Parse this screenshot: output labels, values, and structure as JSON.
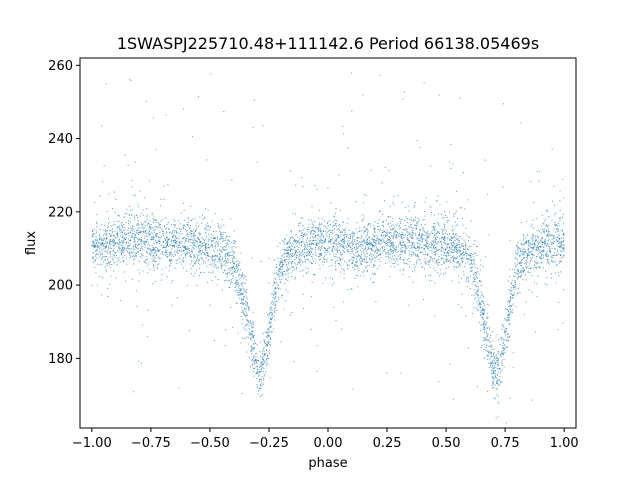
{
  "chart_data": {
    "type": "scatter",
    "title": "1SWASPJ225710.48+111142.6 Period 66138.05469s",
    "xlabel": "phase",
    "ylabel": "flux",
    "xlim": [
      -1.05,
      1.05
    ],
    "ylim": [
      161,
      262
    ],
    "x_ticks": [
      -1.0,
      -0.75,
      -0.5,
      -0.25,
      0.0,
      0.25,
      0.5,
      0.75,
      1.0
    ],
    "x_tick_labels": [
      "−1.00",
      "−0.75",
      "−0.50",
      "−0.25",
      "0.00",
      "0.25",
      "0.50",
      "0.75",
      "1.00"
    ],
    "y_ticks": [
      180,
      200,
      220,
      240,
      260
    ],
    "y_tick_labels": [
      "180",
      "200",
      "220",
      "240",
      "260"
    ],
    "grid": false,
    "point_color": "#1f77b4",
    "series": [
      {
        "x": [
          -1.0,
          -0.95,
          -0.9,
          -0.85,
          -0.8,
          -0.75,
          -0.7,
          -0.65,
          -0.6,
          -0.55,
          -0.5,
          -0.45,
          -0.4,
          -0.375,
          -0.35,
          -0.325,
          -0.3,
          -0.29,
          -0.275,
          -0.25,
          -0.225,
          -0.2,
          -0.15,
          -0.1,
          -0.05,
          0.0,
          0.05,
          0.1,
          0.15,
          0.2,
          0.25,
          0.3,
          0.35,
          0.4,
          0.45,
          0.5,
          0.55,
          0.6,
          0.625,
          0.65,
          0.675,
          0.7,
          0.71,
          0.725,
          0.75,
          0.775,
          0.8,
          0.85,
          0.9,
          0.95,
          1.0
        ],
        "y": [
          210,
          211,
          212,
          213,
          213,
          212,
          211,
          212,
          212,
          211,
          210,
          209,
          206,
          201,
          194,
          186,
          178,
          175,
          178,
          186,
          197,
          205,
          209,
          211,
          212,
          212,
          211,
          210,
          210,
          211,
          212,
          212,
          212,
          212,
          211,
          211,
          210,
          207,
          201,
          194,
          186,
          178,
          175,
          178,
          186,
          197,
          205,
          209,
          211,
          212,
          212
        ]
      }
    ]
  }
}
